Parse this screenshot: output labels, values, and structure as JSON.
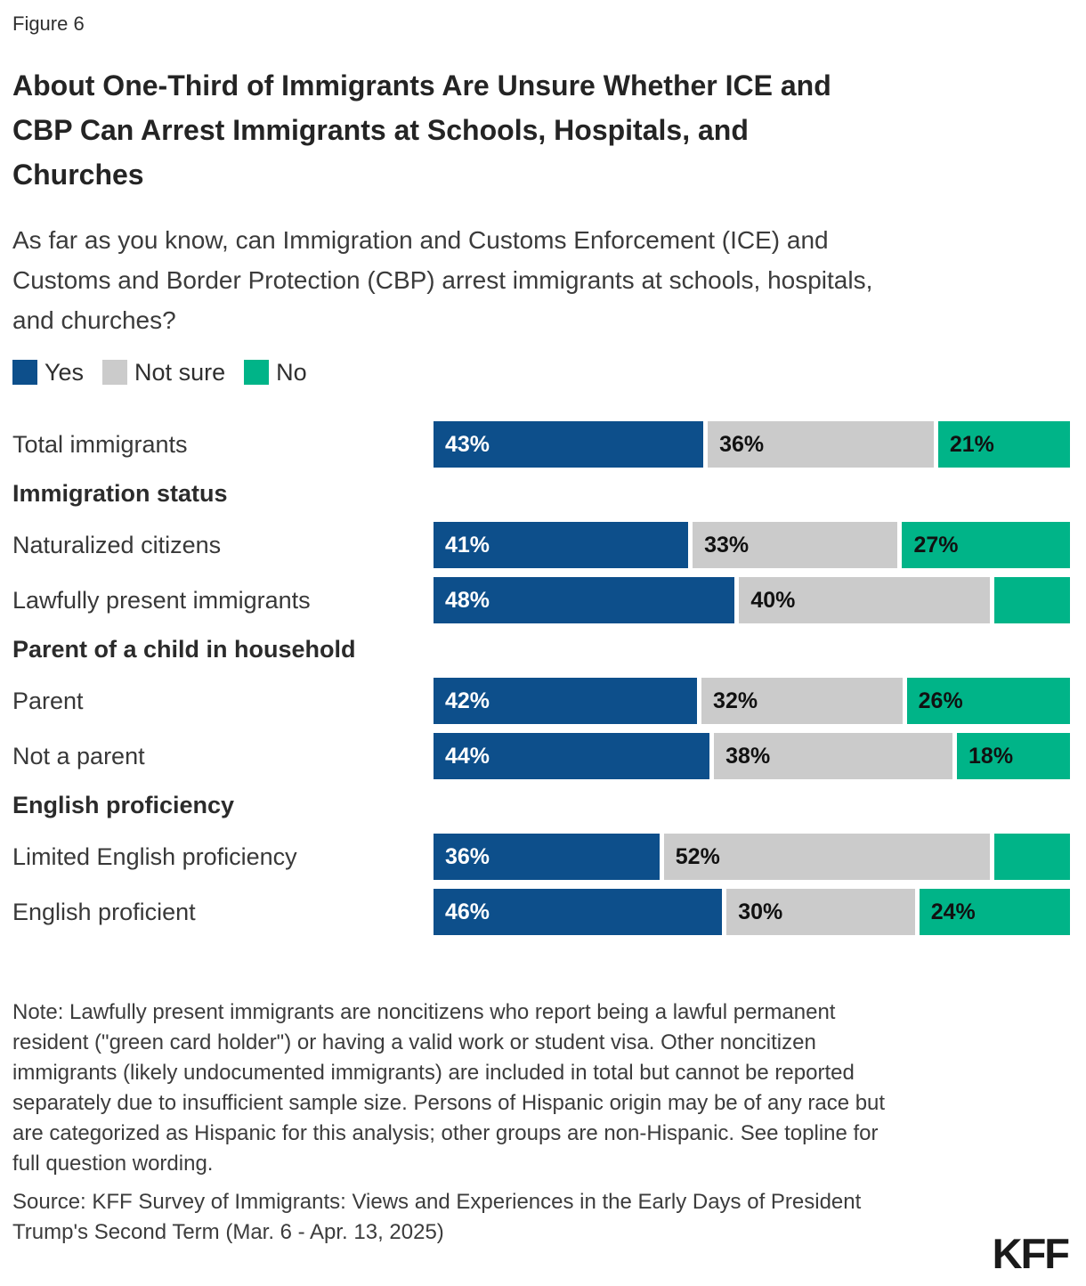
{
  "figure_label": "Figure 6",
  "title_lines": [
    "About One-Third of Immigrants Are Unsure Whether ICE and",
    "CBP Can Arrest Immigrants at Schools, Hospitals, and",
    "Churches"
  ],
  "subtitle_lines": [
    "As far as you know, can Immigration and Customs Enforcement (ICE) and",
    "Customs and Border Protection (CBP) arrest immigrants at schools, hospitals,",
    "and churches?"
  ],
  "chart_data": {
    "type": "bar",
    "orientation": "horizontal",
    "stacked": true,
    "legend_position": "top",
    "value_format": "percent",
    "xlim": [
      0,
      100
    ],
    "title": "About One-Third of Immigrants Are Unsure Whether ICE and CBP Can Arrest Immigrants at Schools, Hospitals, and Churches",
    "subtitle": "As far as you know, can Immigration and Customs Enforcement (ICE) and Customs and Border Protection (CBP) arrest immigrants at schools, hospitals, and churches?",
    "series_names": [
      "Yes",
      "Not sure",
      "No"
    ],
    "series_colors": [
      "#0D4F8B",
      "#CBCBCB",
      "#00B488"
    ],
    "rows": [
      {
        "kind": "bar",
        "label": "Total immigrants",
        "values": [
          43,
          36,
          21
        ],
        "value_labels": [
          "43%",
          "36%",
          "21%"
        ]
      },
      {
        "kind": "section",
        "label": "Immigration status"
      },
      {
        "kind": "bar",
        "label": "Naturalized citizens",
        "values": [
          41,
          33,
          27
        ],
        "value_labels": [
          "41%",
          "33%",
          "27%"
        ]
      },
      {
        "kind": "bar",
        "label": "Lawfully present immigrants",
        "values": [
          48,
          40,
          12
        ],
        "value_labels": [
          "48%",
          "40%",
          ""
        ]
      },
      {
        "kind": "section",
        "label": "Parent of a child in household"
      },
      {
        "kind": "bar",
        "label": "Parent",
        "values": [
          42,
          32,
          26
        ],
        "value_labels": [
          "42%",
          "32%",
          "26%"
        ]
      },
      {
        "kind": "bar",
        "label": "Not a parent",
        "values": [
          44,
          38,
          18
        ],
        "value_labels": [
          "44%",
          "38%",
          "18%"
        ]
      },
      {
        "kind": "section",
        "label": "English proficiency"
      },
      {
        "kind": "bar",
        "label": "Limited English proficiency",
        "values": [
          36,
          52,
          12
        ],
        "value_labels": [
          "36%",
          "52%",
          ""
        ]
      },
      {
        "kind": "bar",
        "label": "English proficient",
        "values": [
          46,
          30,
          24
        ],
        "value_labels": [
          "46%",
          "30%",
          "24%"
        ]
      }
    ]
  },
  "note_lines": [
    "Note: Lawfully present immigrants are noncitizens who report being a lawful permanent",
    "resident (\"green card holder\") or having a valid work or student visa. Other noncitizen",
    "immigrants (likely undocumented immigrants) are included in total but cannot be reported",
    "separately due to insufficient sample size. Persons of Hispanic origin may be of any race but",
    "are categorized as Hispanic for this analysis; other groups are non-Hispanic. See topline for",
    "full question wording."
  ],
  "source_lines": [
    "Source: KFF Survey of Immigrants: Views and Experiences in the Early Days of President",
    "Trump's Second Term (Mar. 6 - Apr. 13, 2025)"
  ],
  "logo_text": "KFF"
}
